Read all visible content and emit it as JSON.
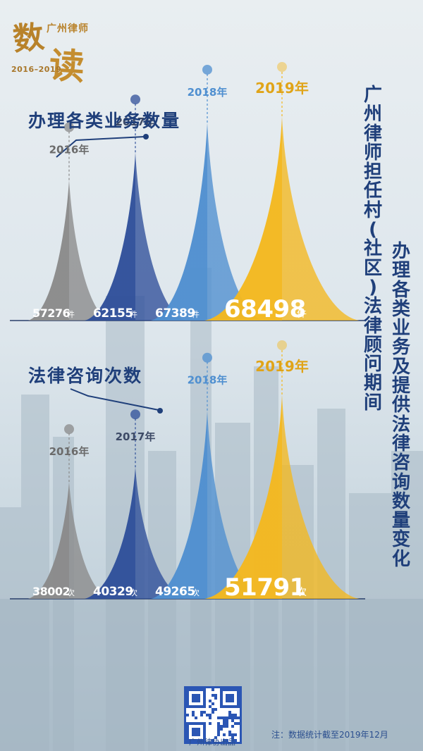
{
  "logo": {
    "char1": "数",
    "char2": "读",
    "title": "广州律师",
    "years": "2016–2019"
  },
  "vertical_titles": {
    "main": "广州律师担任村(社区)法律顾问期间",
    "sub": "办理各类业务及提供法律咨询数量变化"
  },
  "sections": [
    {
      "title": "办理各类业务数量"
    },
    {
      "title": "法律咨询次数"
    }
  ],
  "colors": {
    "gray": "#8a8a8a",
    "navy": "#2f4f9a",
    "sky": "#4f8fd0",
    "gold": "#f4b81e",
    "title": "#1f3f7a"
  },
  "chart_data": [
    {
      "type": "area",
      "title": "办理各类业务数量",
      "unit": "件",
      "categories": [
        "2016年",
        "2017年",
        "2018年",
        "2019年"
      ],
      "values": [
        57276,
        62155,
        67389,
        68498
      ],
      "value_labels": [
        "57276",
        "62155",
        "67389",
        "68498"
      ]
    },
    {
      "type": "area",
      "title": "法律咨询次数",
      "unit": "次",
      "categories": [
        "2016年",
        "2017年",
        "2018年",
        "2019年"
      ],
      "values": [
        38002,
        40329,
        49265,
        51791
      ],
      "value_labels": [
        "38002",
        "40329",
        "49265",
        "51791"
      ]
    }
  ],
  "footer": {
    "publisher": "广州律协出品",
    "note": "注：数据统计截至2019年12月"
  }
}
